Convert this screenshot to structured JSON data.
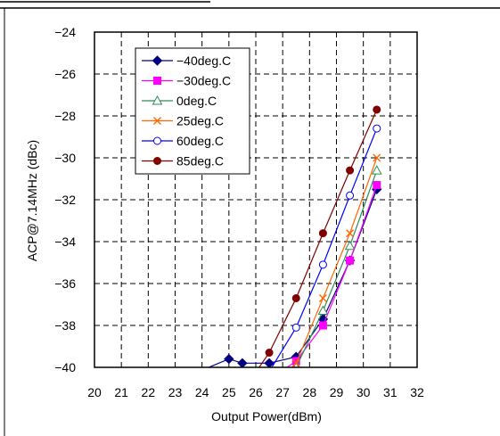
{
  "chart_data": {
    "type": "line",
    "xlabel": "Output Power(dBm)",
    "ylabel": "ACP@7.14MHz (dBc)",
    "xlim": [
      20,
      32
    ],
    "ylim": [
      -40,
      -24
    ],
    "xticks": [
      20,
      21,
      22,
      23,
      24,
      25,
      26,
      27,
      28,
      29,
      30,
      31,
      32
    ],
    "yticks": [
      -24,
      -26,
      -28,
      -30,
      -32,
      -34,
      -36,
      -38,
      -40
    ],
    "xtick_labels": [
      "20",
      "21",
      "22",
      "23",
      "24",
      "25",
      "26",
      "27",
      "28",
      "29",
      "30",
      "31",
      "32"
    ],
    "ytick_labels": [
      "−24",
      "−26",
      "−28",
      "−30",
      "−32",
      "−34",
      "−36",
      "−38",
      "−40"
    ],
    "grid": true,
    "legend_position": "top-left",
    "series": [
      {
        "name": "−40deg.C",
        "color": "#000080",
        "marker": "diamond",
        "x": [
          23.5,
          25.0,
          25.5,
          26.5,
          27.5,
          28.5,
          29.5,
          30.5
        ],
        "y": [
          -40.4,
          -39.6,
          -39.8,
          -39.8,
          -39.5,
          -37.7,
          -34.9,
          -31.5
        ]
      },
      {
        "name": "−30deg.C",
        "color": "#ff00ff",
        "marker": "square",
        "x": [
          26.5,
          27.5,
          28.5,
          29.5,
          30.5
        ],
        "y": [
          -40.6,
          -39.7,
          -38.0,
          -34.9,
          -31.3
        ]
      },
      {
        "name": "0deg.C",
        "color": "#2e8b57",
        "marker": "triangle",
        "x": [
          26.8,
          27.5,
          28.5,
          29.5,
          30.5
        ],
        "y": [
          -40.6,
          -40.0,
          -37.3,
          -34.2,
          -30.6
        ]
      },
      {
        "name": "25deg.C",
        "color": "#ff6600",
        "marker": "x",
        "x": [
          27.0,
          27.5,
          28.5,
          29.5,
          30.5
        ],
        "y": [
          -40.6,
          -39.8,
          -36.7,
          -33.6,
          -30.0
        ]
      },
      {
        "name": "60deg.C",
        "color": "#0000ff",
        "marker": "circle-open",
        "x": [
          26.5,
          27.5,
          28.5,
          29.5,
          30.5
        ],
        "y": [
          -40.2,
          -38.1,
          -35.1,
          -31.8,
          -28.6
        ]
      },
      {
        "name": "85deg.C",
        "color": "#800000",
        "marker": "circle-filled",
        "x": [
          25.8,
          26.5,
          27.5,
          28.5,
          29.5,
          30.5
        ],
        "y": [
          -40.6,
          -39.3,
          -36.7,
          -33.6,
          -30.6,
          -27.7
        ]
      }
    ]
  }
}
